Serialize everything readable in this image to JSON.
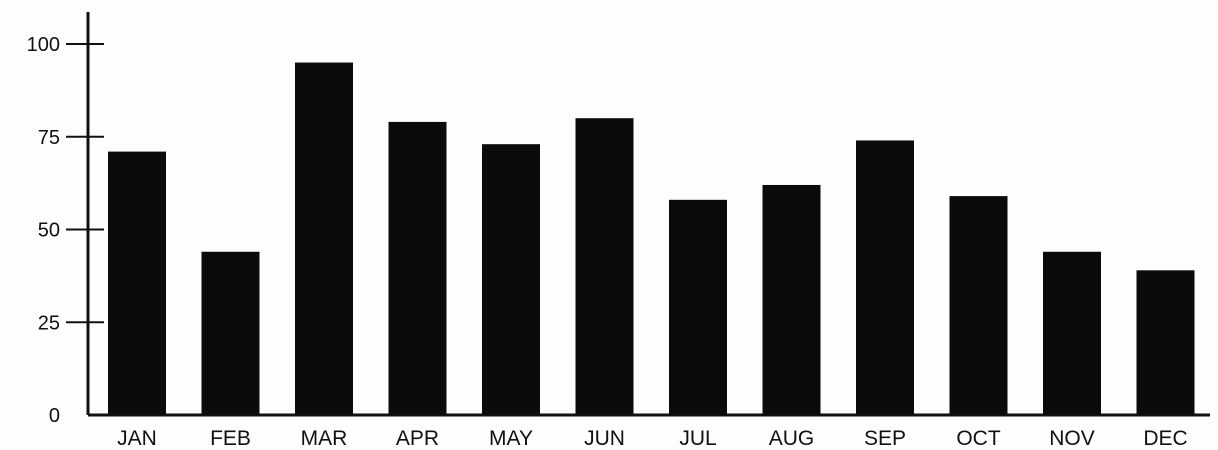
{
  "chart_data": {
    "type": "bar",
    "title": "",
    "xlabel": "",
    "ylabel": "",
    "categories": [
      "JAN",
      "FEB",
      "MAR",
      "APR",
      "MAY",
      "JUN",
      "JUL",
      "AUG",
      "SEP",
      "OCT",
      "NOV",
      "DEC"
    ],
    "values": [
      71,
      44,
      95,
      79,
      73,
      80,
      58,
      62,
      74,
      59,
      44,
      39
    ],
    "ylim": [
      0,
      100
    ],
    "yticks": [
      0,
      25,
      50,
      75,
      100
    ],
    "grid": false,
    "legend": "none",
    "bar_color": "#0b0b0b",
    "axis_color": "#111111"
  }
}
